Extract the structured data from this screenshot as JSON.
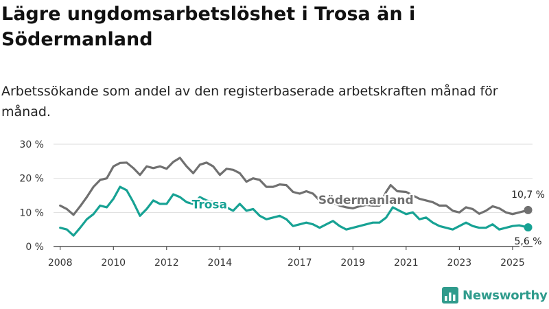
{
  "title": "Lägre ungdomsarbetslöshet i Trosa än i Södermanland",
  "subtitle": "Arbetssökande som andel av den registerbaserade arbetskraften månad för månad.",
  "brand": {
    "name": "Newsworthy",
    "icon": "bar-chart-logo-icon",
    "color": "#2f9b8c"
  },
  "chart_data": {
    "type": "line",
    "title": "Lägre ungdomsarbetslöshet i Trosa än i Södermanland",
    "subtitle": "Arbetssökande som andel av den registerbaserade arbetskraften månad för månad.",
    "xlabel": "",
    "ylabel": "",
    "x_ticks": [
      "2008",
      "2010",
      "2012",
      "2014",
      "2017",
      "2019",
      "2021",
      "2023",
      "2025"
    ],
    "y_ticks": [
      "0 %",
      "10 %",
      "20 %",
      "30 %"
    ],
    "ylim": [
      0,
      30
    ],
    "xlim": [
      "2008-01",
      "2025-08"
    ],
    "grid": true,
    "legend": "inline labels",
    "series": [
      {
        "name": "Södermanland",
        "color": "#707070",
        "end_label": "10,7 %",
        "points": [
          [
            "2008-01",
            12.0
          ],
          [
            "2008-04",
            11.0
          ],
          [
            "2008-07",
            9.3
          ],
          [
            "2008-10",
            11.8
          ],
          [
            "2009-01",
            14.5
          ],
          [
            "2009-04",
            17.5
          ],
          [
            "2009-07",
            19.5
          ],
          [
            "2009-10",
            20.0
          ],
          [
            "2010-01",
            23.5
          ],
          [
            "2010-04",
            24.5
          ],
          [
            "2010-07",
            24.6
          ],
          [
            "2010-10",
            23.0
          ],
          [
            "2011-01",
            21.0
          ],
          [
            "2011-04",
            23.5
          ],
          [
            "2011-07",
            23.0
          ],
          [
            "2011-10",
            23.5
          ],
          [
            "2012-01",
            22.8
          ],
          [
            "2012-04",
            24.8
          ],
          [
            "2012-07",
            26.0
          ],
          [
            "2012-10",
            23.5
          ],
          [
            "2013-01",
            21.5
          ],
          [
            "2013-04",
            24.0
          ],
          [
            "2013-07",
            24.6
          ],
          [
            "2013-10",
            23.5
          ],
          [
            "2014-01",
            21.0
          ],
          [
            "2014-04",
            22.8
          ],
          [
            "2014-07",
            22.5
          ],
          [
            "2014-10",
            21.5
          ],
          [
            "2015-01",
            19.0
          ],
          [
            "2015-04",
            20.0
          ],
          [
            "2015-07",
            19.5
          ],
          [
            "2015-10",
            17.5
          ],
          [
            "2016-01",
            17.5
          ],
          [
            "2016-04",
            18.2
          ],
          [
            "2016-07",
            18.0
          ],
          [
            "2016-10",
            16.0
          ],
          [
            "2017-01",
            15.5
          ],
          [
            "2017-04",
            16.2
          ],
          [
            "2017-07",
            15.5
          ],
          [
            "2017-10",
            13.5
          ],
          [
            "2018-01",
            13.0
          ],
          [
            "2018-04",
            12.8
          ],
          [
            "2018-07",
            12.0
          ],
          [
            "2018-10",
            11.5
          ],
          [
            "2019-01",
            11.2
          ],
          [
            "2019-04",
            11.8
          ],
          [
            "2019-07",
            12.2
          ],
          [
            "2019-10",
            12.0
          ],
          [
            "2020-01",
            12.0
          ],
          [
            "2020-04",
            16.0
          ],
          [
            "2020-06",
            18.0
          ],
          [
            "2020-09",
            16.2
          ],
          [
            "2021-01",
            16.0
          ],
          [
            "2021-04",
            15.0
          ],
          [
            "2021-07",
            14.0
          ],
          [
            "2021-10",
            13.5
          ],
          [
            "2022-01",
            13.0
          ],
          [
            "2022-04",
            12.0
          ],
          [
            "2022-07",
            12.0
          ],
          [
            "2022-10",
            10.5
          ],
          [
            "2023-01",
            10.0
          ],
          [
            "2023-04",
            11.5
          ],
          [
            "2023-07",
            11.0
          ],
          [
            "2023-10",
            9.6
          ],
          [
            "2024-01",
            10.5
          ],
          [
            "2024-04",
            11.8
          ],
          [
            "2024-07",
            11.2
          ],
          [
            "2024-10",
            10.0
          ],
          [
            "2025-01",
            9.5
          ],
          [
            "2025-04",
            10.0
          ],
          [
            "2025-08",
            10.7
          ]
        ]
      },
      {
        "name": "Trosa",
        "color": "#17a294",
        "end_label": "5,6 %",
        "points": [
          [
            "2008-01",
            5.5
          ],
          [
            "2008-04",
            5.0
          ],
          [
            "2008-07",
            3.2
          ],
          [
            "2008-10",
            5.5
          ],
          [
            "2009-01",
            8.0
          ],
          [
            "2009-04",
            9.5
          ],
          [
            "2009-07",
            12.0
          ],
          [
            "2009-10",
            11.5
          ],
          [
            "2010-01",
            14.0
          ],
          [
            "2010-04",
            17.5
          ],
          [
            "2010-07",
            16.5
          ],
          [
            "2010-10",
            13.0
          ],
          [
            "2011-01",
            9.0
          ],
          [
            "2011-04",
            11.0
          ],
          [
            "2011-07",
            13.5
          ],
          [
            "2011-10",
            12.5
          ],
          [
            "2012-01",
            12.5
          ],
          [
            "2012-04",
            15.3
          ],
          [
            "2012-07",
            14.5
          ],
          [
            "2012-10",
            13.0
          ],
          [
            "2013-01",
            12.5
          ],
          [
            "2013-04",
            14.5
          ],
          [
            "2013-07",
            13.5
          ],
          [
            "2013-10",
            13.0
          ],
          [
            "2014-01",
            12.5
          ],
          [
            "2014-04",
            11.5
          ],
          [
            "2014-07",
            10.5
          ],
          [
            "2014-10",
            12.5
          ],
          [
            "2015-01",
            10.5
          ],
          [
            "2015-04",
            11.0
          ],
          [
            "2015-07",
            9.0
          ],
          [
            "2015-10",
            8.0
          ],
          [
            "2016-01",
            8.5
          ],
          [
            "2016-04",
            9.0
          ],
          [
            "2016-07",
            8.0
          ],
          [
            "2016-10",
            6.0
          ],
          [
            "2017-01",
            6.5
          ],
          [
            "2017-04",
            7.0
          ],
          [
            "2017-07",
            6.5
          ],
          [
            "2017-10",
            5.5
          ],
          [
            "2018-01",
            6.5
          ],
          [
            "2018-04",
            7.5
          ],
          [
            "2018-07",
            6.0
          ],
          [
            "2018-10",
            5.0
          ],
          [
            "2019-01",
            5.5
          ],
          [
            "2019-04",
            6.0
          ],
          [
            "2019-07",
            6.5
          ],
          [
            "2019-10",
            7.0
          ],
          [
            "2020-01",
            7.0
          ],
          [
            "2020-04",
            8.5
          ],
          [
            "2020-07",
            11.5
          ],
          [
            "2020-10",
            10.5
          ],
          [
            "2021-01",
            9.5
          ],
          [
            "2021-04",
            10.0
          ],
          [
            "2021-07",
            8.0
          ],
          [
            "2021-10",
            8.5
          ],
          [
            "2022-01",
            7.0
          ],
          [
            "2022-04",
            6.0
          ],
          [
            "2022-07",
            5.5
          ],
          [
            "2022-10",
            5.0
          ],
          [
            "2023-01",
            6.0
          ],
          [
            "2023-04",
            7.0
          ],
          [
            "2023-07",
            6.0
          ],
          [
            "2023-10",
            5.5
          ],
          [
            "2024-01",
            5.5
          ],
          [
            "2024-04",
            6.5
          ],
          [
            "2024-07",
            5.0
          ],
          [
            "2024-10",
            5.5
          ],
          [
            "2025-01",
            6.0
          ],
          [
            "2025-04",
            6.2
          ],
          [
            "2025-08",
            5.6
          ]
        ]
      }
    ]
  }
}
